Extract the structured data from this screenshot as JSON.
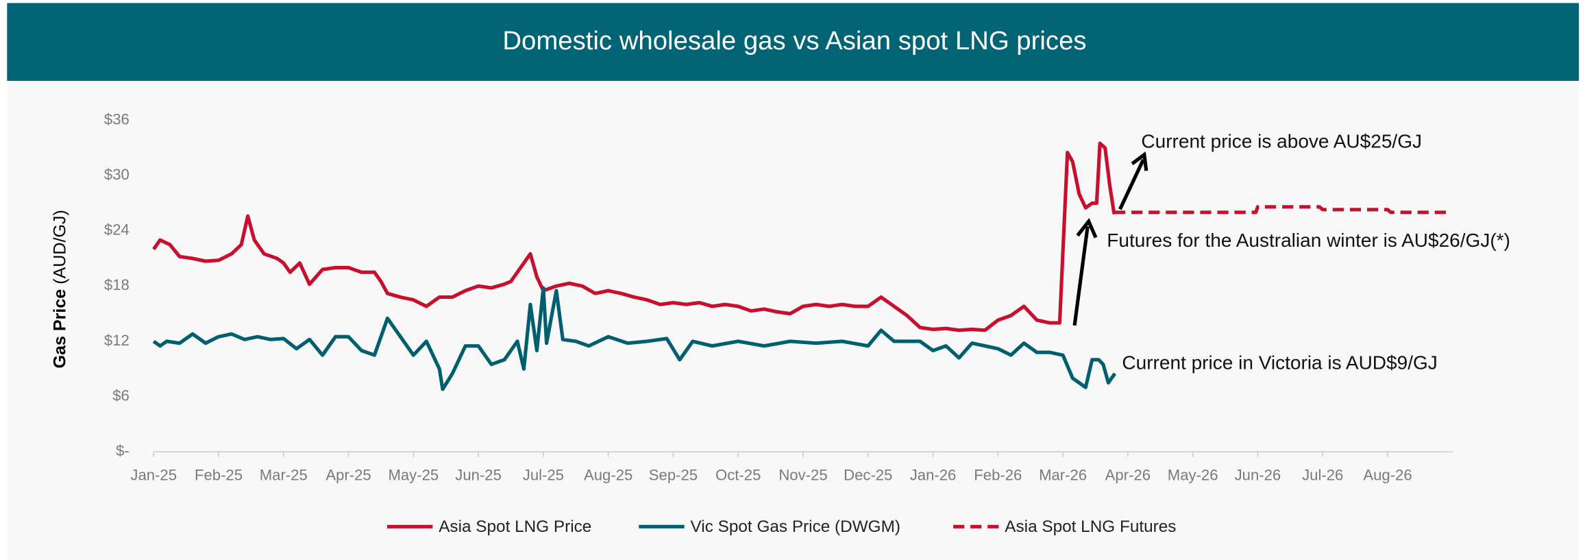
{
  "chart_data": {
    "type": "line",
    "title": "Domestic wholesale gas vs Asian spot LNG prices",
    "y_label": [
      "Gas Price",
      "(AUD/GJ)"
    ],
    "xlim": [
      0,
      20
    ],
    "xticks": [
      {
        "value": 0,
        "label": "Jan-25"
      },
      {
        "value": 1,
        "label": "Feb-25"
      },
      {
        "value": 2,
        "label": "Mar-25"
      },
      {
        "value": 3,
        "label": "Apr-25"
      },
      {
        "value": 4,
        "label": "May-25"
      },
      {
        "value": 5,
        "label": "Jun-25"
      },
      {
        "value": 6,
        "label": "Jul-25"
      },
      {
        "value": 7,
        "label": "Aug-25"
      },
      {
        "value": 8,
        "label": "Sep-25"
      },
      {
        "value": 9,
        "label": "Oct-25"
      },
      {
        "value": 10,
        "label": "Nov-25"
      },
      {
        "value": 11,
        "label": "Dec-25"
      },
      {
        "value": 12,
        "label": "Jan-26"
      },
      {
        "value": 13,
        "label": "Feb-26"
      },
      {
        "value": 14,
        "label": "Mar-26"
      },
      {
        "value": 15,
        "label": "Apr-26"
      },
      {
        "value": 16,
        "label": "May-26"
      },
      {
        "value": 17,
        "label": "Jun-26"
      },
      {
        "value": 18,
        "label": "Jul-26"
      },
      {
        "value": 19,
        "label": "Aug-26"
      }
    ],
    "ylim": [
      0,
      36
    ],
    "yticks": [
      {
        "value": 0,
        "label": "$-"
      },
      {
        "value": 6,
        "label": "$6"
      },
      {
        "value": 12,
        "label": "$12"
      },
      {
        "value": 18,
        "label": "$18"
      },
      {
        "value": 24,
        "label": "$24"
      },
      {
        "value": 30,
        "label": "$30"
      },
      {
        "value": 36,
        "label": "$36"
      }
    ],
    "grid": false,
    "legend": "bottom",
    "series": [
      {
        "name": "Asia Spot LNG Price",
        "color": "#c8102e",
        "dashed": false,
        "x": [
          0,
          0.1,
          0.25,
          0.4,
          0.6,
          0.8,
          1.0,
          1.2,
          1.35,
          1.45,
          1.55,
          1.7,
          1.9,
          2.0,
          2.1,
          2.25,
          2.4,
          2.6,
          2.8,
          3.0,
          3.2,
          3.4,
          3.5,
          3.6,
          3.8,
          4.0,
          4.2,
          4.4,
          4.6,
          4.8,
          5.0,
          5.2,
          5.4,
          5.5,
          5.7,
          5.8,
          5.9,
          6.0,
          6.2,
          6.4,
          6.6,
          6.8,
          7.0,
          7.2,
          7.4,
          7.6,
          7.8,
          8.0,
          8.2,
          8.4,
          8.6,
          8.8,
          9.0,
          9.2,
          9.4,
          9.6,
          9.8,
          10.0,
          10.2,
          10.4,
          10.6,
          10.8,
          11.0,
          11.2,
          11.4,
          11.6,
          11.8,
          12.0,
          12.2,
          12.4,
          12.6,
          12.8,
          13.0,
          13.2,
          13.4,
          13.6,
          13.8,
          13.95,
          14.07,
          14.15,
          14.25,
          14.35,
          14.45,
          14.52,
          14.57,
          14.65,
          14.72,
          14.79
        ],
        "values": [
          22,
          23,
          22.5,
          21.2,
          21,
          20.7,
          20.8,
          21.5,
          22.5,
          25.6,
          23,
          21.5,
          21,
          20.5,
          19.5,
          20.5,
          18.2,
          19.8,
          20,
          20,
          19.5,
          19.5,
          18.5,
          17.2,
          16.8,
          16.5,
          15.8,
          16.8,
          16.8,
          17.5,
          18,
          17.8,
          18.2,
          18.5,
          20.5,
          21.5,
          19,
          17.5,
          18,
          18.3,
          18,
          17.2,
          17.5,
          17.2,
          16.8,
          16.5,
          16,
          16.2,
          16,
          16.2,
          15.8,
          16,
          15.8,
          15.3,
          15.5,
          15.2,
          15,
          15.8,
          16,
          15.8,
          16,
          15.8,
          15.8,
          16.8,
          15.8,
          14.8,
          13.5,
          13.3,
          13.4,
          13.2,
          13.3,
          13.2,
          14.3,
          14.8,
          15.8,
          14.3,
          14,
          14,
          32.5,
          31.5,
          28,
          26.5,
          27,
          27,
          33.5,
          33,
          29,
          25.8
        ]
      },
      {
        "name": "Vic Spot Gas Price (DWGM)",
        "color": "#005f6e",
        "dashed": false,
        "x": [
          0,
          0.1,
          0.2,
          0.4,
          0.6,
          0.8,
          1.0,
          1.2,
          1.4,
          1.6,
          1.8,
          2.0,
          2.2,
          2.4,
          2.6,
          2.8,
          3.0,
          3.2,
          3.4,
          3.6,
          3.8,
          4.0,
          4.2,
          4.4,
          4.45,
          4.6,
          4.8,
          5.0,
          5.2,
          5.4,
          5.6,
          5.7,
          5.8,
          5.9,
          6.0,
          6.05,
          6.2,
          6.3,
          6.5,
          6.7,
          7.0,
          7.3,
          7.6,
          7.9,
          8.1,
          8.3,
          8.6,
          9.0,
          9.4,
          9.8,
          10.2,
          10.6,
          11.0,
          11.2,
          11.4,
          11.8,
          12.0,
          12.2,
          12.4,
          12.6,
          12.8,
          13.0,
          13.2,
          13.4,
          13.6,
          13.8,
          14.0,
          14.15,
          14.35,
          14.45,
          14.55,
          14.62,
          14.7,
          14.8
        ],
        "values": [
          12,
          11.5,
          12,
          11.8,
          12.8,
          11.8,
          12.5,
          12.8,
          12.2,
          12.5,
          12.2,
          12.3,
          11.2,
          12.2,
          10.5,
          12.5,
          12.5,
          11,
          10.5,
          14.5,
          12.5,
          10.5,
          12,
          9,
          6.8,
          8.5,
          11.5,
          11.5,
          9.5,
          10,
          12,
          9,
          16,
          11,
          17.8,
          11.8,
          17.5,
          12.2,
          12,
          11.5,
          12.5,
          11.8,
          12,
          12.3,
          10,
          12,
          11.5,
          12,
          11.5,
          12,
          11.8,
          12,
          11.5,
          13.2,
          12,
          12,
          11,
          11.5,
          10.2,
          11.8,
          11.5,
          11.2,
          10.5,
          11.8,
          10.8,
          10.8,
          10.5,
          8,
          7,
          10,
          10,
          9.5,
          7.5,
          8.5
        ]
      },
      {
        "name": "Asia Spot LNG Futures",
        "color": "#c8102e",
        "dashed": true,
        "x": [
          14.79,
          16.97,
          17.0,
          17.95,
          18.0,
          19.0,
          19.05,
          19.9
        ],
        "values": [
          26,
          26,
          26.6,
          26.6,
          26.3,
          26.3,
          26,
          26
        ]
      }
    ],
    "annotations": [
      "Current price is above AU$25/GJ",
      "Futures for the Australian winter is AU$26/GJ(*)",
      "Current price in Victoria is AUD$9/GJ"
    ]
  }
}
